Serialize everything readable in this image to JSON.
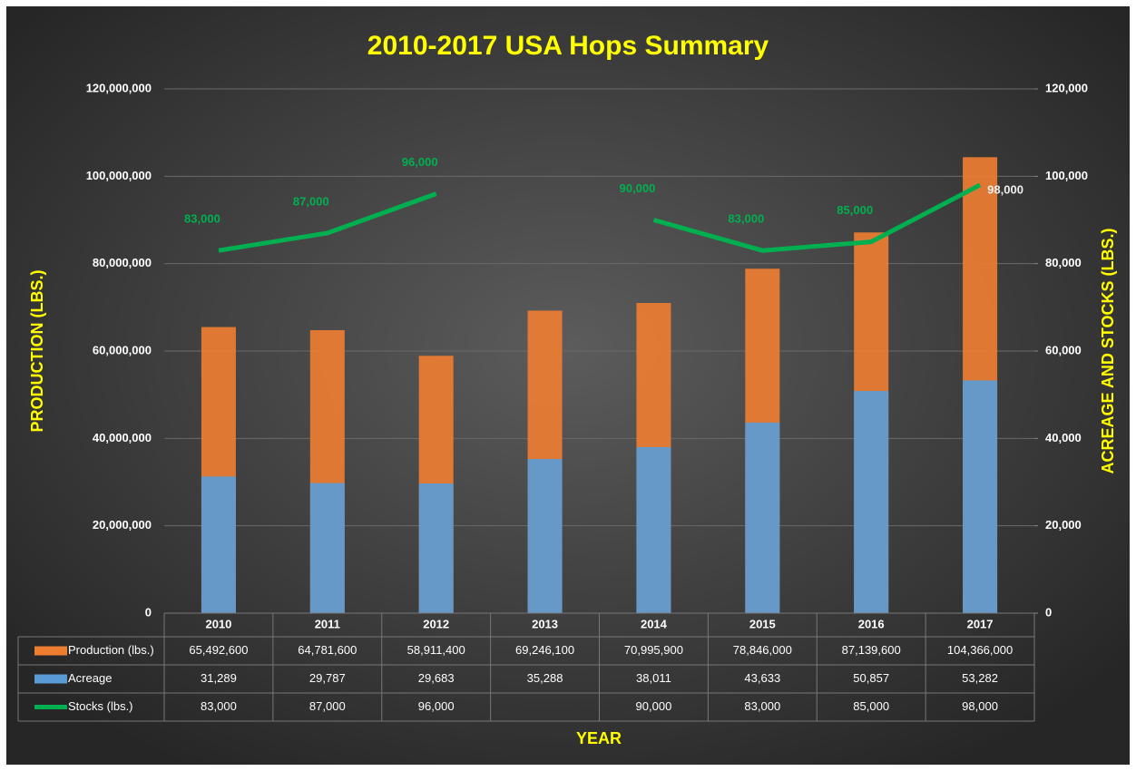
{
  "chart_data": {
    "type": "bar",
    "title": "2010-2017 USA Hops Summary",
    "y_label": "PRODUCTION (LBS.)",
    "y2_label": "ACREAGE AND STOCKS (LBS.)",
    "x_label": "YEAR",
    "categories": [
      "2010",
      "2011",
      "2012",
      "2013",
      "2014",
      "2015",
      "2016",
      "2017"
    ],
    "series": [
      {
        "name": "Production (lbs.)",
        "type": "bar",
        "color": "#ED7D31",
        "values": [
          65492600,
          64781600,
          58911400,
          69246100,
          70995900,
          78846000,
          87139600,
          104366000
        ],
        "value_labels": [
          "65,492,600",
          "64,781,600",
          "58,911,400",
          "69,246,100",
          "70,995,900",
          "78,846,000",
          "87,139,600",
          "104,366,000"
        ]
      },
      {
        "name": "Acreage",
        "type": "bar",
        "axis": "y2",
        "color": "#5B9BD5",
        "values": [
          31289,
          29787,
          29683,
          35288,
          38011,
          43633,
          50857,
          53282
        ],
        "value_labels": [
          "31,289",
          "29,787",
          "29,683",
          "35,288",
          "38,011",
          "43,633",
          "50,857",
          "53,282"
        ]
      },
      {
        "name": "Stocks (lbs.)",
        "type": "line",
        "axis": "y2",
        "color": "#00B050",
        "values": [
          83000,
          87000,
          96000,
          null,
          90000,
          83000,
          85000,
          98000
        ],
        "value_labels": [
          "83,000",
          "87,000",
          "96,000",
          null,
          "90,000",
          "83,000",
          "85,000",
          "98,000"
        ]
      }
    ],
    "ylim": [
      0,
      120000000
    ],
    "yticks": [
      0,
      {
        "value": 20000000,
        "label": "20,000,000"
      },
      {
        "value": 40000000,
        "label": "40,000,000"
      },
      {
        "value": 60000000,
        "label": "60,000,000"
      },
      {
        "value": 80000000,
        "label": "80,000,000"
      },
      {
        "value": 100000000,
        "label": "100,000,000"
      },
      {
        "value": 120000000,
        "label": "120,000,000"
      }
    ],
    "y2lim": [
      0,
      120000
    ],
    "y2ticks": [
      0,
      {
        "value": 20000,
        "label": "20,000"
      },
      {
        "value": 40000,
        "label": "40,000"
      },
      {
        "value": 60000,
        "label": "60,000"
      },
      {
        "value": 80000,
        "label": "80,000"
      },
      {
        "value": 100000,
        "label": "100,000"
      },
      {
        "value": 120000,
        "label": "120,000"
      }
    ],
    "grid": true
  }
}
